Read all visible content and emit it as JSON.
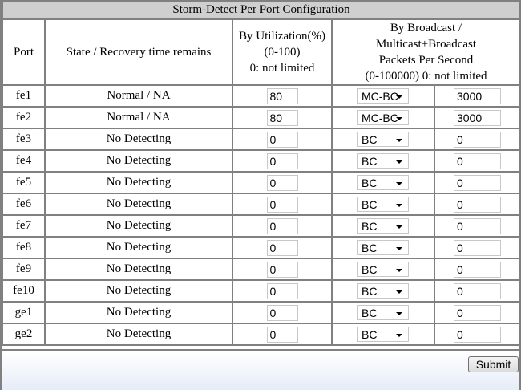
{
  "title": "Storm-Detect Per Port Configuration",
  "headers": {
    "port": "Port",
    "state": "State / Recovery time remains",
    "util_line1": "By Utilization(%)",
    "util_line2": "(0-100)",
    "util_line3": "0: not limited",
    "bc_line1": "By Broadcast /",
    "bc_line2": "Multicast+Broadcast",
    "bc_line3": "Packets Per Second",
    "bc_line4": "(0-100000) 0: not limited"
  },
  "rows": [
    {
      "port": "fe1",
      "state": "Normal / NA",
      "util": "80",
      "mode": "MC-BC",
      "pps": "3000"
    },
    {
      "port": "fe2",
      "state": "Normal / NA",
      "util": "80",
      "mode": "MC-BC",
      "pps": "3000"
    },
    {
      "port": "fe3",
      "state": "No Detecting",
      "util": "0",
      "mode": "BC",
      "pps": "0"
    },
    {
      "port": "fe4",
      "state": "No Detecting",
      "util": "0",
      "mode": "BC",
      "pps": "0"
    },
    {
      "port": "fe5",
      "state": "No Detecting",
      "util": "0",
      "mode": "BC",
      "pps": "0"
    },
    {
      "port": "fe6",
      "state": "No Detecting",
      "util": "0",
      "mode": "BC",
      "pps": "0"
    },
    {
      "port": "fe7",
      "state": "No Detecting",
      "util": "0",
      "mode": "BC",
      "pps": "0"
    },
    {
      "port": "fe8",
      "state": "No Detecting",
      "util": "0",
      "mode": "BC",
      "pps": "0"
    },
    {
      "port": "fe9",
      "state": "No Detecting",
      "util": "0",
      "mode": "BC",
      "pps": "0"
    },
    {
      "port": "fe10",
      "state": "No Detecting",
      "util": "0",
      "mode": "BC",
      "pps": "0"
    },
    {
      "port": "ge1",
      "state": "No Detecting",
      "util": "0",
      "mode": "BC",
      "pps": "0"
    },
    {
      "port": "ge2",
      "state": "No Detecting",
      "util": "0",
      "mode": "BC",
      "pps": "0"
    }
  ],
  "submit_label": "Submit"
}
